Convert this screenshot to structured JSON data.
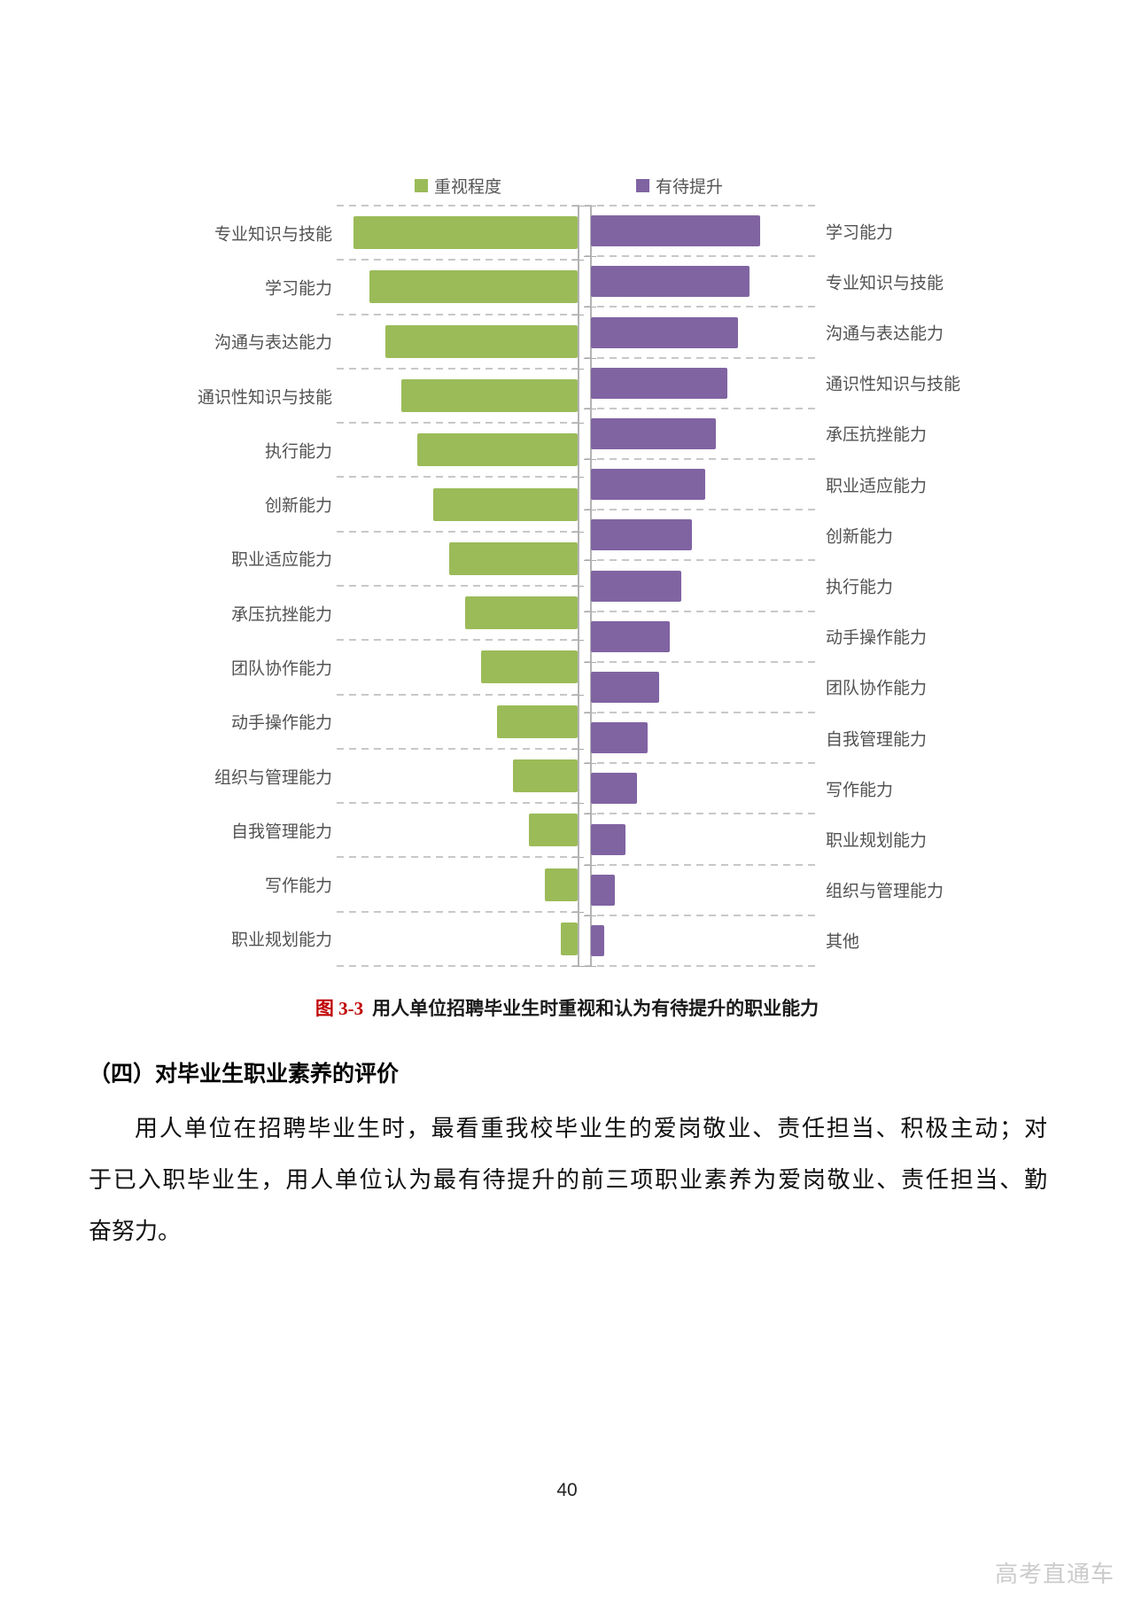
{
  "chart_data": {
    "type": "bar",
    "orientation": "horizontal-tornado",
    "legend": [
      {
        "label": "重视程度",
        "color": "#9BBB59"
      },
      {
        "label": "有待提升",
        "color": "#8064A2"
      }
    ],
    "left_series": {
      "name": "重视程度",
      "color": "#9BBB59",
      "categories": [
        "专业知识与技能",
        "学习能力",
        "沟通与表达能力",
        "通识性知识与技能",
        "执行能力",
        "创新能力",
        "职业适应能力",
        "承压抗挫能力",
        "团队协作能力",
        "动手操作能力",
        "组织与管理能力",
        "自我管理能力",
        "写作能力",
        "职业规划能力"
      ],
      "values_rel": [
        253,
        235,
        217,
        199,
        181,
        163,
        145,
        127,
        109,
        91,
        73,
        55,
        37,
        19
      ]
    },
    "right_series": {
      "name": "有待提升",
      "color": "#8064A2",
      "categories": [
        "学习能力",
        "专业知识与技能",
        "沟通与表达能力",
        "通识性知识与技能",
        "承压抗挫能力",
        "职业适应能力",
        "创新能力",
        "执行能力",
        "动手操作能力",
        "团队协作能力",
        "自我管理能力",
        "写作能力",
        "职业规划能力",
        "组织与管理能力",
        "其他"
      ],
      "values_rel": [
        191,
        179,
        166,
        154,
        141,
        129,
        114,
        102,
        89,
        77,
        64,
        52,
        39,
        27,
        15
      ]
    },
    "title": "图 3-3 用人单位招聘毕业生时重视和认为有待提升的职业能力",
    "xlabel": "",
    "ylabel": "",
    "grid": "dashed horizontal separators, no numeric axis labels",
    "legend_position": "top"
  },
  "caption": {
    "figure_label": "图 3-3",
    "text": "用人单位招聘毕业生时重视和认为有待提升的职业能力"
  },
  "section": {
    "heading": "（四）对毕业生职业素养的评价"
  },
  "paragraph": {
    "lines": [
      "用人单位在招聘毕业生时，最看重我校毕业生的爱岗敬业、责任担当、积极主动；对",
      "于已入职毕业生，用人单位认为最有待提升的前三项职业素养为爱岗敬业、责任担当、勤",
      "奋努力。"
    ]
  },
  "footer": {
    "page_number": "40"
  },
  "watermark": {
    "text": "高考直通车"
  }
}
